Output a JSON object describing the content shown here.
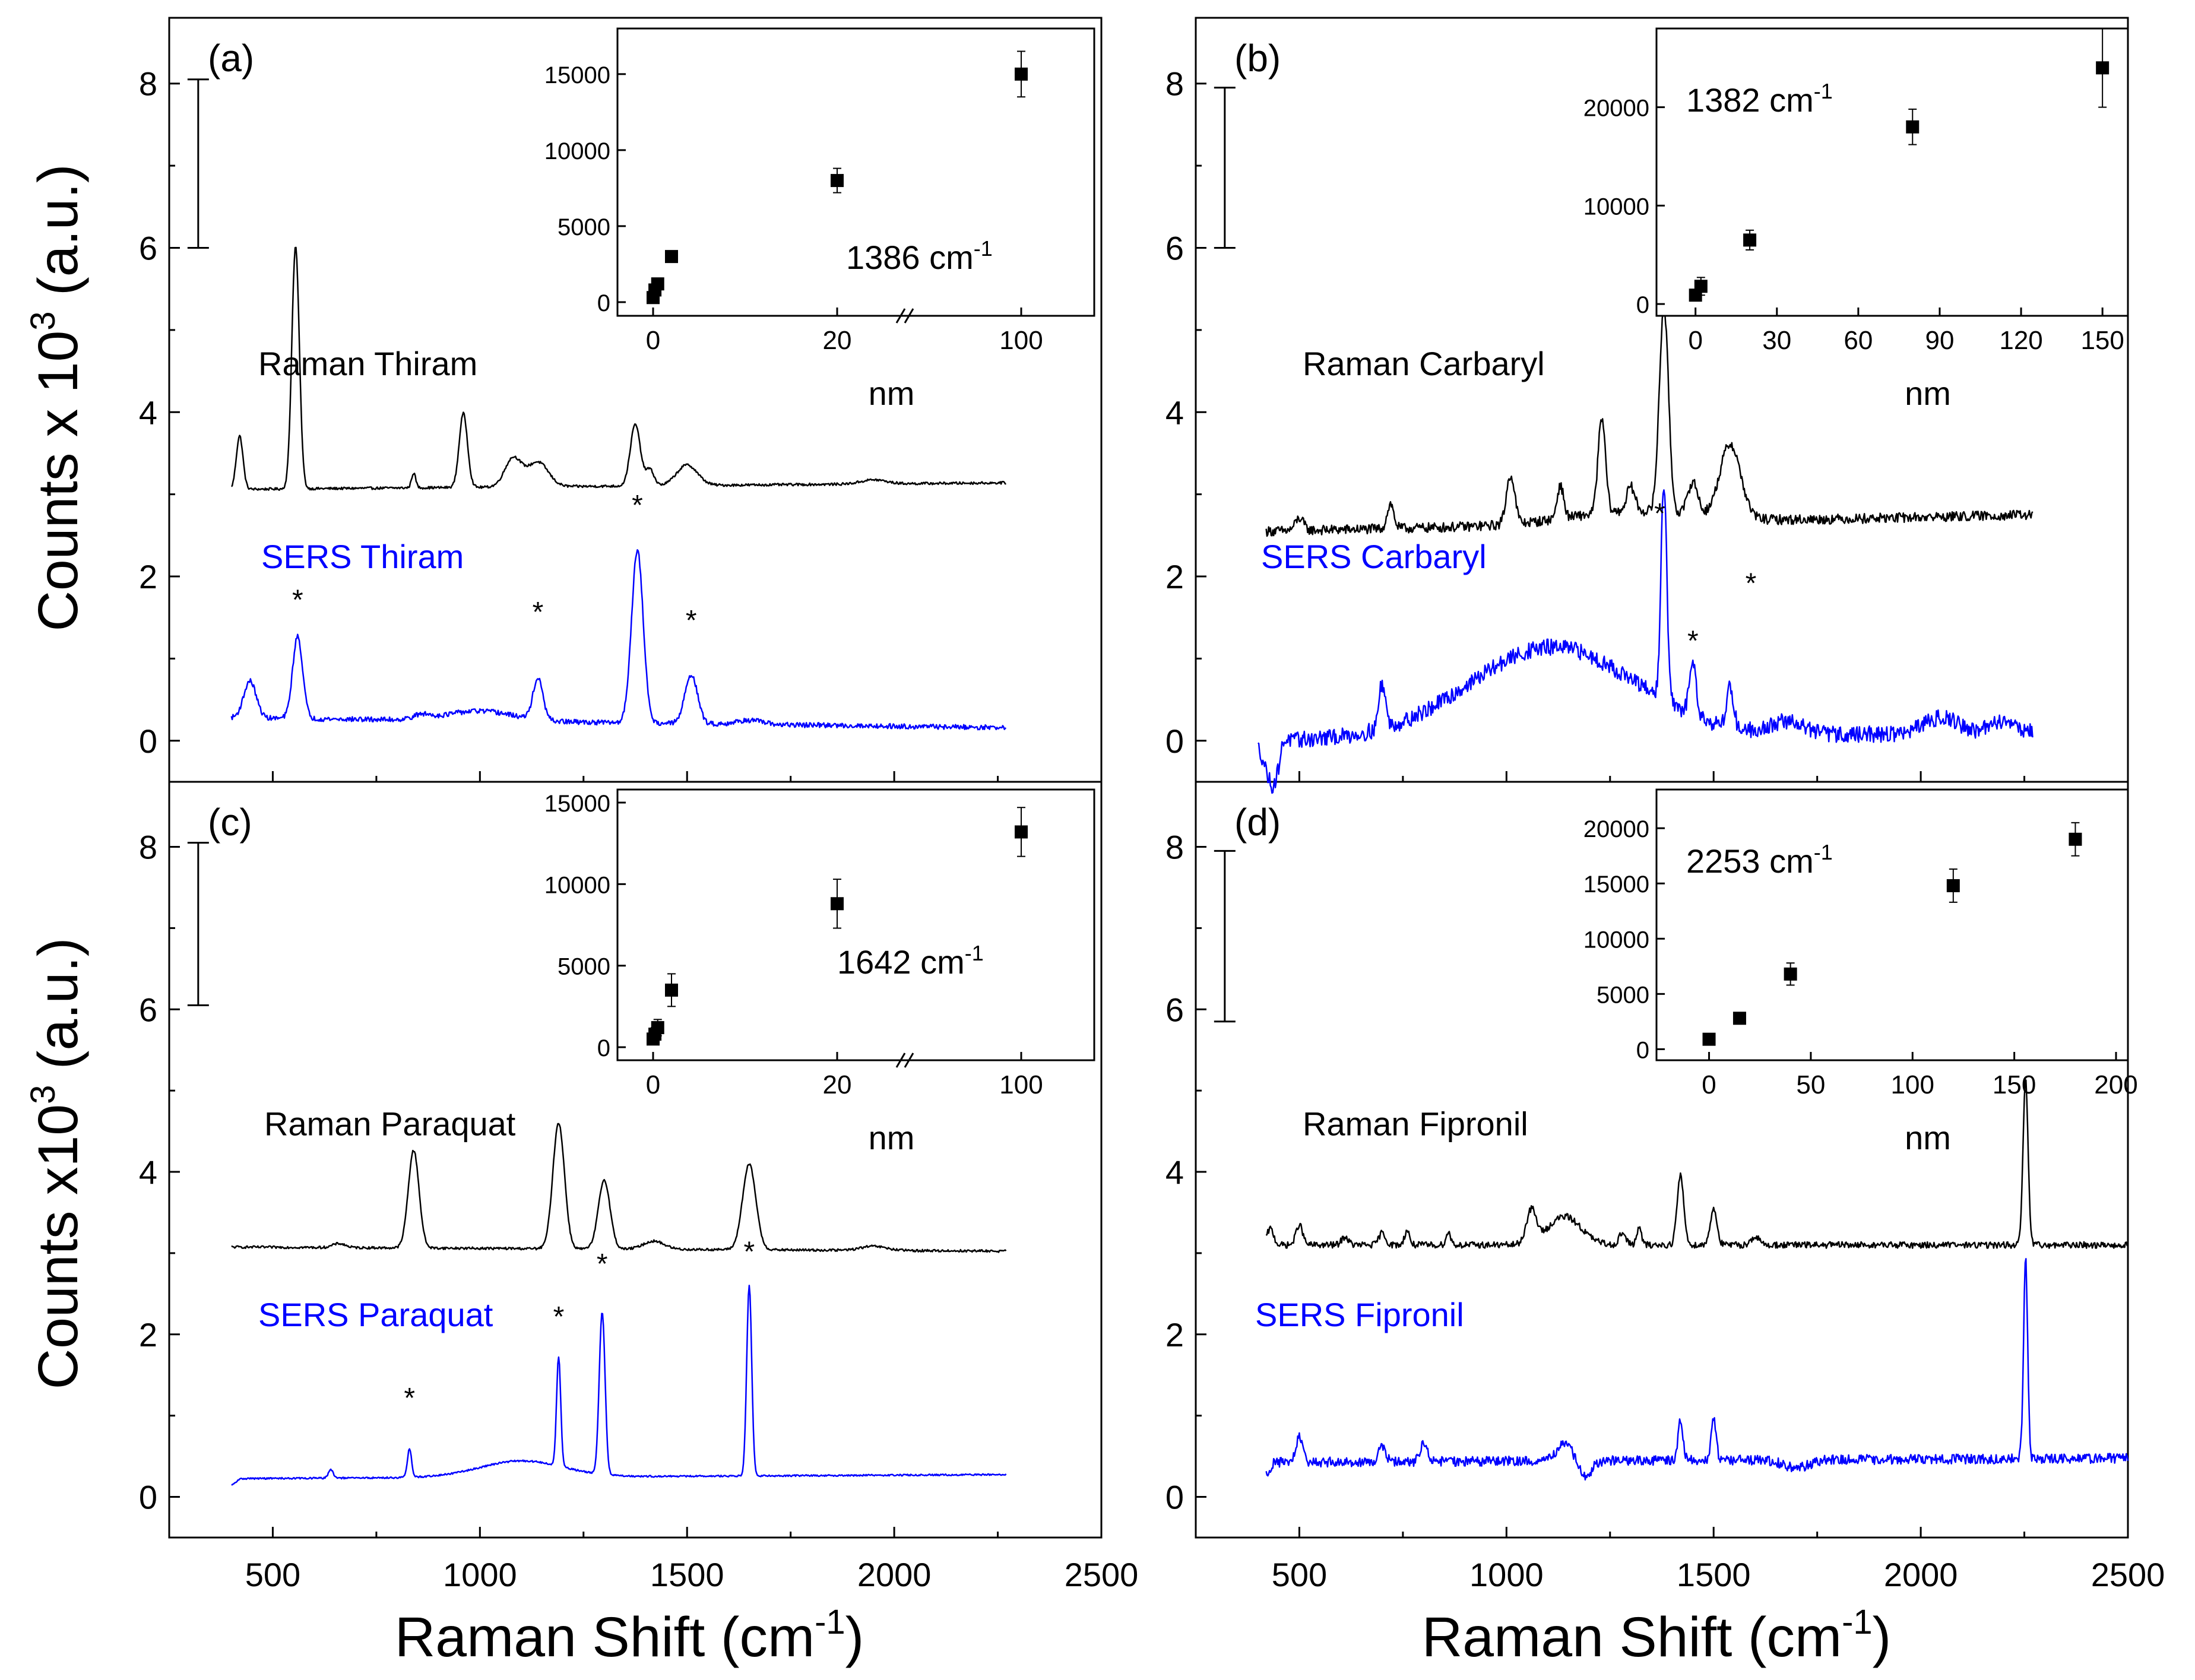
{
  "figure": {
    "xlabel_left": "Raman Shift (cm",
    "xlabel_right": "Raman Shift (cm",
    "xlabel_sup": "-1",
    "xlabel_close": ")",
    "ylabel_top": "Counts x 10",
    "ylabel_bottom": "Counts x10",
    "ylabel_sup": "3",
    "ylabel_unit": " (a.u.)",
    "colors": {
      "raman": "#000000",
      "sers": "#0000ff",
      "axis": "#000000"
    }
  },
  "chart_data": [
    {
      "id": "a",
      "type": "line",
      "panel_label": "(a)",
      "xlim": [
        250,
        2500
      ],
      "ylim": [
        -0.5,
        8.8
      ],
      "xticks": [
        500,
        1000,
        1500,
        2000,
        2500
      ],
      "yticks": [
        0,
        2,
        4,
        6,
        8
      ],
      "scale_bar": [
        6.0,
        8.05
      ],
      "series": [
        {
          "name": "Raman Thiram",
          "color": "#000000",
          "label_pos": [
            150,
            4.5
          ],
          "baseline": 3.1,
          "xrange": [
            400,
            2270
          ],
          "noise": 0.015,
          "slope": 0.08,
          "peaks": [
            [
              420,
              0.65,
              8
            ],
            [
              555,
              2.95,
              9
            ],
            [
              840,
              0.18,
              5
            ],
            [
              960,
              0.9,
              10
            ],
            [
              1080,
              0.35,
              20
            ],
            [
              1140,
              0.3,
              25
            ],
            [
              1375,
              0.75,
              12
            ],
            [
              1410,
              0.2,
              10
            ],
            [
              1500,
              0.25,
              25
            ],
            [
              1950,
              0.05,
              30
            ]
          ]
        },
        {
          "name": "SERS Thiram",
          "color": "#0000ff",
          "label_pos": [
            155,
            2.15
          ],
          "baseline": 0.22,
          "xrange": [
            400,
            2270
          ],
          "noise": 0.03,
          "slope": -0.12,
          "peaks": [
            [
              445,
              0.45,
              15
            ],
            [
              560,
              1.0,
              12
            ],
            [
              860,
              0.05,
              20
            ],
            [
              1000,
              0.12,
              80
            ],
            [
              1140,
              0.5,
              12
            ],
            [
              1380,
              2.1,
              14
            ],
            [
              1510,
              0.6,
              15
            ],
            [
              1650,
              0.05,
              30
            ]
          ]
        }
      ],
      "star_labels": [
        [
          560,
          1.6
        ],
        [
          1140,
          1.45
        ],
        [
          1380,
          2.75
        ],
        [
          1510,
          1.35
        ]
      ],
      "inset": {
        "type": "scatter",
        "label": "1386 cm",
        "label_sup": "-1",
        "xlabel": "nm",
        "broken_x": true,
        "xticklabels": [
          "0",
          "20",
          "100"
        ],
        "yticks": [
          0,
          5000,
          10000,
          15000
        ],
        "points": [
          {
            "x": 0,
            "y": 300,
            "err": 150
          },
          {
            "x": 0.2,
            "y": 800,
            "err": 150
          },
          {
            "x": 0.5,
            "y": 1200,
            "err": 200
          },
          {
            "x": 2,
            "y": 3000,
            "err": 150
          },
          {
            "x": 20,
            "y": 8000,
            "err": 800
          },
          {
            "x": 100,
            "y": 15000,
            "err": 1500
          }
        ]
      }
    },
    {
      "id": "b",
      "type": "line",
      "panel_label": "(b)",
      "xlim": [
        250,
        2500
      ],
      "ylim": [
        -0.5,
        8.8
      ],
      "xticks": [
        500,
        1000,
        1500,
        2000,
        2500
      ],
      "yticks": [
        0,
        2,
        4,
        6,
        8
      ],
      "scale_bar": [
        6.0,
        7.95
      ],
      "series": [
        {
          "name": "Raman Carbaryl",
          "color": "#000000",
          "label_pos": [
            180,
            4.5
          ],
          "baseline": 2.65,
          "xrange": [
            420,
            2270
          ],
          "noise": 0.06,
          "slope": 0.2,
          "peaks": [
            [
              500,
              0.15,
              10
            ],
            [
              720,
              0.3,
              8
            ],
            [
              1010,
              0.6,
              10
            ],
            [
              1130,
              0.4,
              8
            ],
            [
              1230,
              1.15,
              9
            ],
            [
              1300,
              0.3,
              10
            ],
            [
              1380,
              2.5,
              11
            ],
            [
              1450,
              0.4,
              12
            ],
            [
              1540,
              0.9,
              25
            ],
            [
              1300,
              0.15,
              150
            ]
          ]
        },
        {
          "name": "SERS Carbaryl",
          "color": "#0000ff",
          "label_pos": [
            110,
            2.15
          ],
          "baseline": 0.05,
          "xrange": [
            400,
            2270
          ],
          "noise": 0.1,
          "slope": 0.1,
          "peaks": [
            [
              440,
              -0.6,
              20
            ],
            [
              460,
              0.3,
              12
            ],
            [
              700,
              0.55,
              8
            ],
            [
              1110,
              1.1,
              200
            ],
            [
              1380,
              2.65,
              7
            ],
            [
              1450,
              0.7,
              8
            ],
            [
              1540,
              0.5,
              8
            ],
            [
              1680,
              0.15,
              40
            ],
            [
              2050,
              0.2,
              40
            ],
            [
              2200,
              0.15,
              30
            ]
          ]
        }
      ],
      "star_labels": [
        [
          1370,
          2.65
        ],
        [
          1450,
          1.1
        ],
        [
          1590,
          1.8
        ]
      ],
      "inset": {
        "type": "scatter",
        "label": "1382 cm",
        "label_sup": "-1",
        "xlabel": "nm",
        "broken_x": false,
        "xlim": [
          -10,
          155
        ],
        "xticks": [
          0,
          30,
          60,
          90,
          120,
          150
        ],
        "yticks": [
          0,
          10000,
          20000
        ],
        "ylim": [
          -1200,
          28000
        ],
        "points": [
          {
            "x": 0,
            "y": 900,
            "err": 300
          },
          {
            "x": 2,
            "y": 1800,
            "err": 900
          },
          {
            "x": 20,
            "y": 6500,
            "err": 1000
          },
          {
            "x": 80,
            "y": 18000,
            "err": 1800
          },
          {
            "x": 150,
            "y": 24000,
            "err": 4000
          }
        ]
      }
    },
    {
      "id": "c",
      "type": "line",
      "panel_label": "(c)",
      "xlim": [
        250,
        2500
      ],
      "ylim": [
        -0.5,
        8.8
      ],
      "xticks": [
        500,
        1000,
        1500,
        2000,
        2500
      ],
      "yticks": [
        0,
        2,
        4,
        6,
        8
      ],
      "scale_bar": [
        6.05,
        8.05
      ],
      "series": [
        {
          "name": "Raman Paraquat",
          "color": "#000000",
          "label_pos": [
            160,
            4.5
          ],
          "baseline": 3.05,
          "xrange": [
            400,
            2270
          ],
          "noise": 0.015,
          "slope": -0.05,
          "peaks": [
            [
              660,
              0.05,
              15
            ],
            [
              840,
              1.2,
              13
            ],
            [
              1190,
              1.55,
              14
            ],
            [
              1300,
              0.85,
              14
            ],
            [
              1420,
              0.1,
              25
            ],
            [
              1650,
              1.05,
              16
            ],
            [
              1950,
              0.05,
              30
            ]
          ]
        },
        {
          "name": "SERS Paraquat",
          "color": "#0000ff",
          "label_pos": [
            150,
            2.15
          ],
          "baseline": 0.25,
          "xrange": [
            400,
            2270
          ],
          "noise": 0.01,
          "slope": 0.05,
          "peaks": [
            [
              400,
              -0.08,
              10
            ],
            [
              640,
              0.1,
              6
            ],
            [
              830,
              0.35,
              5
            ],
            [
              1100,
              0.2,
              100
            ],
            [
              1190,
              1.35,
              5
            ],
            [
              1295,
              2.0,
              7
            ],
            [
              1650,
              2.35,
              6
            ]
          ]
        }
      ],
      "star_labels": [
        [
          830,
          1.1
        ],
        [
          1190,
          2.1
        ],
        [
          1295,
          2.75
        ],
        [
          1650,
          2.9
        ]
      ],
      "inset": {
        "type": "scatter",
        "label": "1642 cm",
        "label_sup": "-1",
        "xlabel": "nm",
        "broken_x": true,
        "xticklabels": [
          "0",
          "20",
          "100"
        ],
        "yticks": [
          0,
          5000,
          10000,
          15000
        ],
        "points": [
          {
            "x": 0,
            "y": 500,
            "err": 300
          },
          {
            "x": 0.2,
            "y": 800,
            "err": 400
          },
          {
            "x": 0.5,
            "y": 1200,
            "err": 500
          },
          {
            "x": 2,
            "y": 3500,
            "err": 1000
          },
          {
            "x": 20,
            "y": 8800,
            "err": 1500
          },
          {
            "x": 100,
            "y": 13200,
            "err": 1500
          }
        ]
      }
    },
    {
      "id": "d",
      "type": "line",
      "panel_label": "(d)",
      "xlim": [
        250,
        2500
      ],
      "ylim": [
        -0.5,
        8.8
      ],
      "xticks": [
        500,
        1000,
        1500,
        2000,
        2500
      ],
      "yticks": [
        0,
        2,
        4,
        6,
        8
      ],
      "scale_bar": [
        5.85,
        7.95
      ],
      "series": [
        {
          "name": "Raman Fipronil",
          "color": "#000000",
          "label_pos": [
            180,
            4.5
          ],
          "baseline": 3.1,
          "xrange": [
            420,
            2500
          ],
          "noise": 0.04,
          "slope": 0.0,
          "peaks": [
            [
              430,
              0.2,
              8
            ],
            [
              500,
              0.25,
              8
            ],
            [
              610,
              0.1,
              8
            ],
            [
              700,
              0.15,
              8
            ],
            [
              760,
              0.18,
              6
            ],
            [
              860,
              0.15,
              6
            ],
            [
              1060,
              0.4,
              12
            ],
            [
              1140,
              0.35,
              40
            ],
            [
              1280,
              0.15,
              8
            ],
            [
              1320,
              0.2,
              6
            ],
            [
              1420,
              0.85,
              8
            ],
            [
              1500,
              0.45,
              8
            ],
            [
              1600,
              0.1,
              10
            ],
            [
              2253,
              2.05,
              6
            ]
          ]
        },
        {
          "name": "SERS Fipronil",
          "color": "#0000ff",
          "label_pos": [
            100,
            2.15
          ],
          "baseline": 0.45,
          "xrange": [
            420,
            2500
          ],
          "noise": 0.06,
          "slope": 0.05,
          "peaks": [
            [
              420,
              -0.15,
              8
            ],
            [
              500,
              0.3,
              8
            ],
            [
              700,
              0.2,
              8
            ],
            [
              800,
              0.25,
              8
            ],
            [
              1140,
              0.2,
              20
            ],
            [
              1190,
              -0.2,
              15
            ],
            [
              1420,
              0.5,
              6
            ],
            [
              1500,
              0.5,
              6
            ],
            [
              1700,
              -0.1,
              30
            ],
            [
              2253,
              2.45,
              5
            ]
          ]
        }
      ],
      "star_labels": [],
      "inset": {
        "type": "scatter",
        "label": "2253 cm",
        "label_sup": "-1",
        "xlabel": "nm",
        "broken_x": false,
        "xlim": [
          -20,
          200
        ],
        "xticks": [
          0,
          50,
          100,
          150,
          200
        ],
        "yticks": [
          0,
          5000,
          10000,
          15000,
          20000
        ],
        "ylim": [
          -1000,
          23500
        ],
        "points": [
          {
            "x": 0,
            "y": 900,
            "err": 150
          },
          {
            "x": 15,
            "y": 2800,
            "err": 200
          },
          {
            "x": 40,
            "y": 6800,
            "err": 1000
          },
          {
            "x": 120,
            "y": 14800,
            "err": 1500
          },
          {
            "x": 180,
            "y": 19000,
            "err": 1500
          }
        ]
      }
    }
  ]
}
